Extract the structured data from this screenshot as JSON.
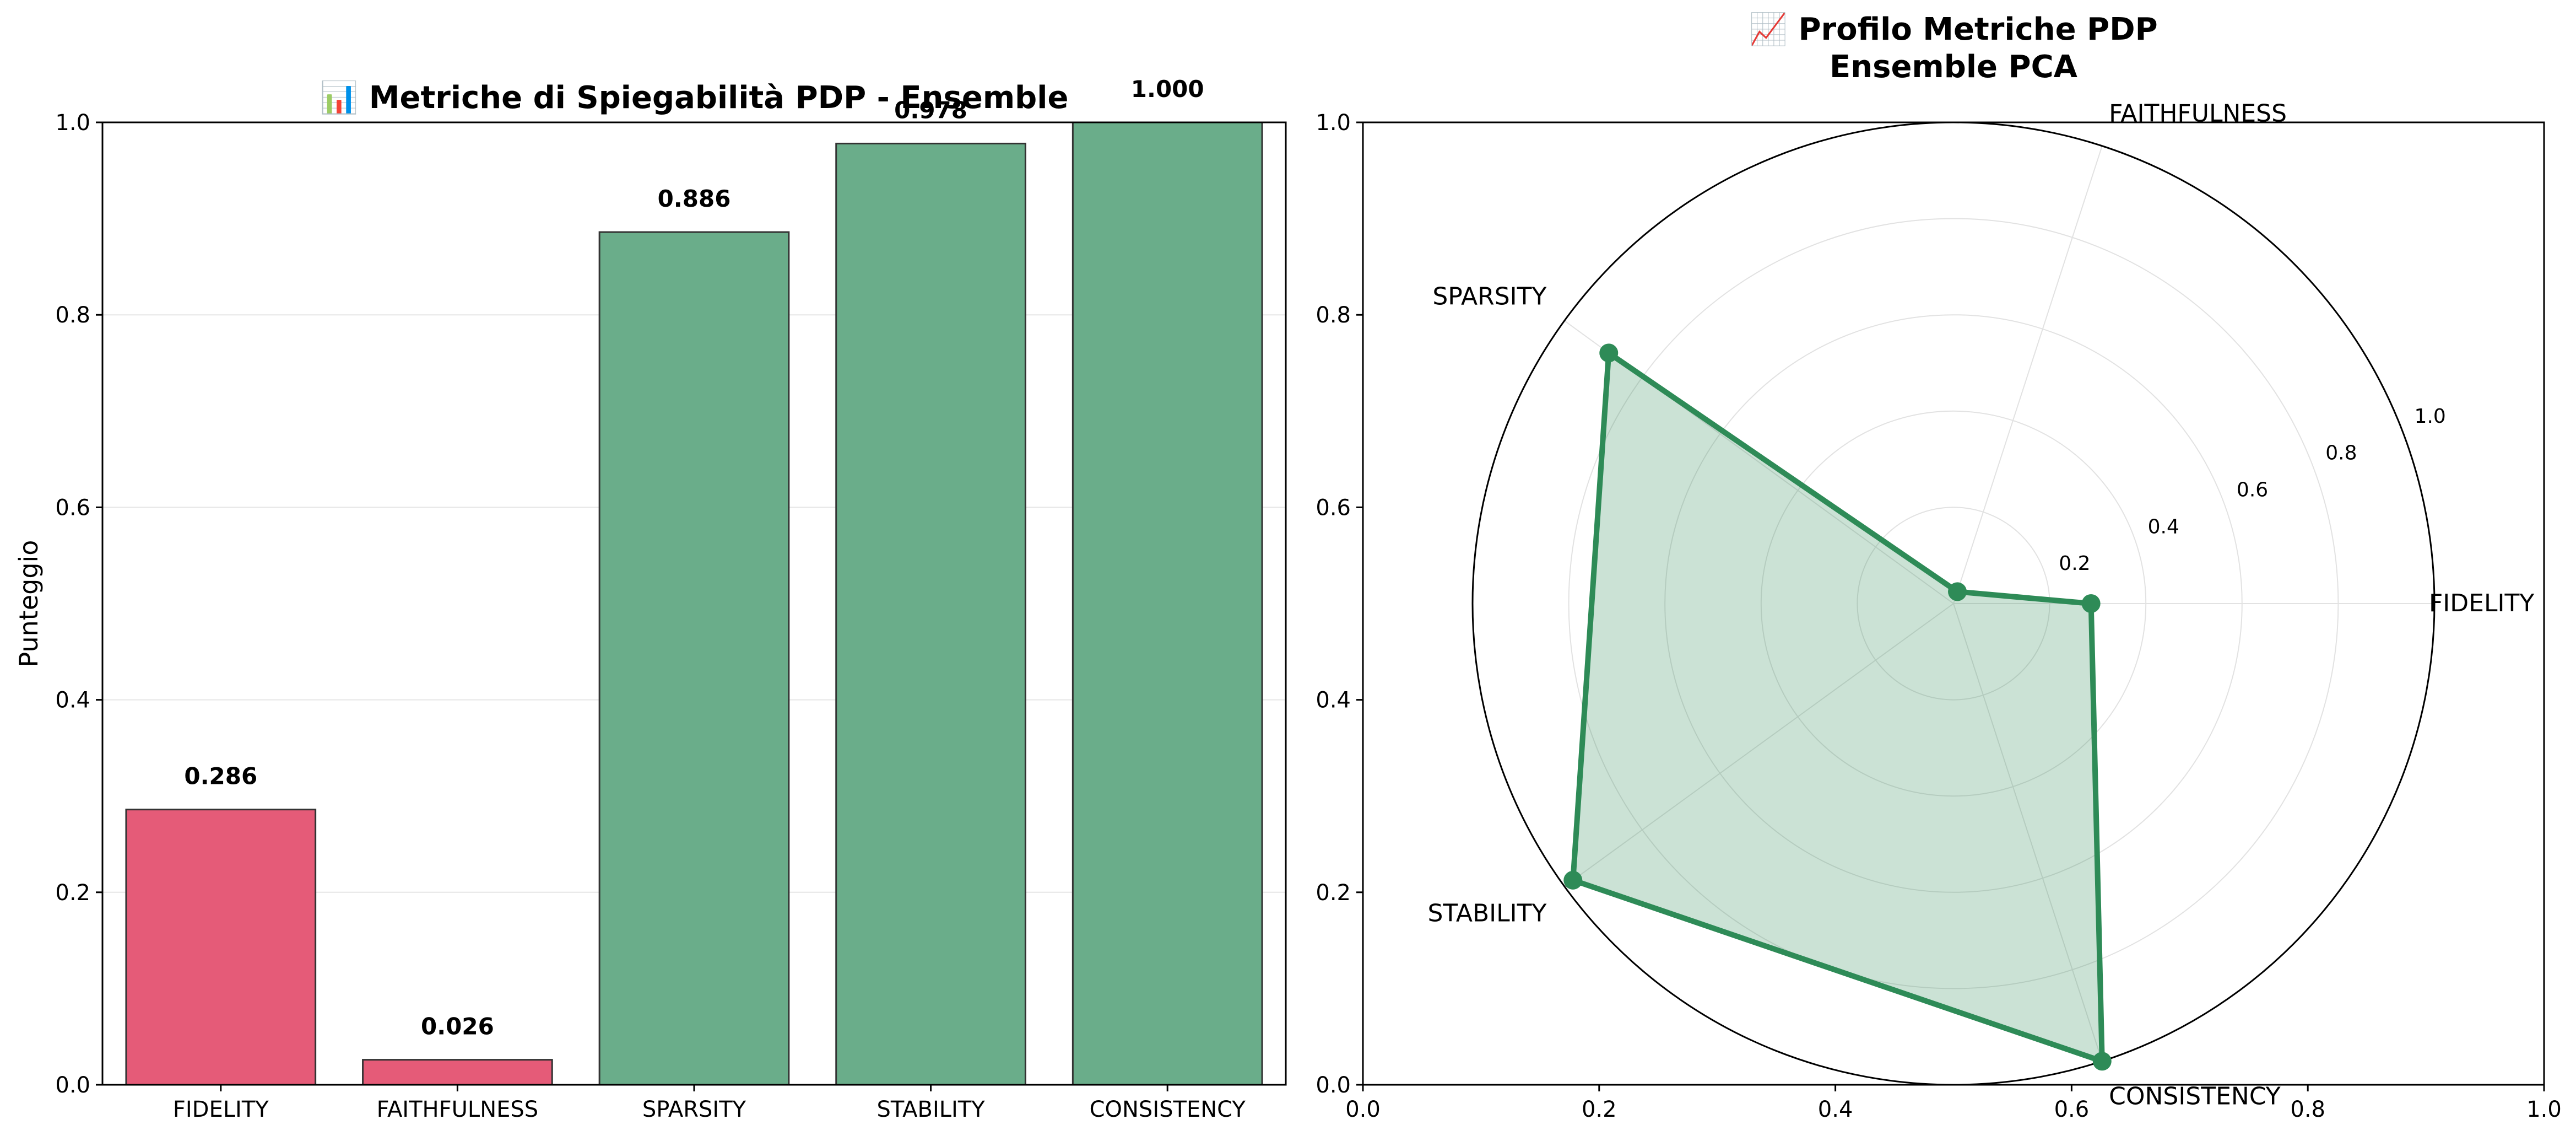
{
  "chart_data": [
    {
      "type": "bar",
      "title": "📊 Metriche di Spiegabilità PDP - Ensemble",
      "xlabel": "",
      "ylabel": "Punteggio",
      "ylim": [
        0,
        1.0
      ],
      "yticks": [
        "0.0",
        "0.2",
        "0.4",
        "0.6",
        "0.8",
        "1.0"
      ],
      "grid": "horizontal",
      "categories": [
        "FIDELITY",
        "FAITHFULNESS",
        "SPARSITY",
        "STABILITY",
        "CONSISTENCY"
      ],
      "values": [
        0.286,
        0.026,
        0.886,
        0.978,
        1.0
      ],
      "value_labels": [
        "0.286",
        "0.026",
        "0.886",
        "0.978",
        "1.000"
      ],
      "colors": [
        "#e55b78",
        "#e55b78",
        "#6aad8a",
        "#6aad8a",
        "#6aad8a"
      ],
      "edge_color": "#333333"
    },
    {
      "type": "radar",
      "title_lines": [
        "📈 Profilo Metriche PDP",
        "Ensemble PCA"
      ],
      "axes": [
        "FIDELITY",
        "FAITHFULNESS",
        "SPARSITY",
        "STABILITY",
        "CONSISTENCY"
      ],
      "values": [
        0.286,
        0.026,
        0.886,
        0.978,
        1.0
      ],
      "r_ticks": [
        "0.2",
        "0.4",
        "0.6",
        "0.8",
        "1.0"
      ],
      "rlim": [
        0,
        1.0
      ],
      "background_axis_ticks": [
        "0.0",
        "0.2",
        "0.4",
        "0.6",
        "0.8",
        "1.0"
      ],
      "line_color": "#2e8b57",
      "fill_color": "#2e8b57"
    }
  ]
}
